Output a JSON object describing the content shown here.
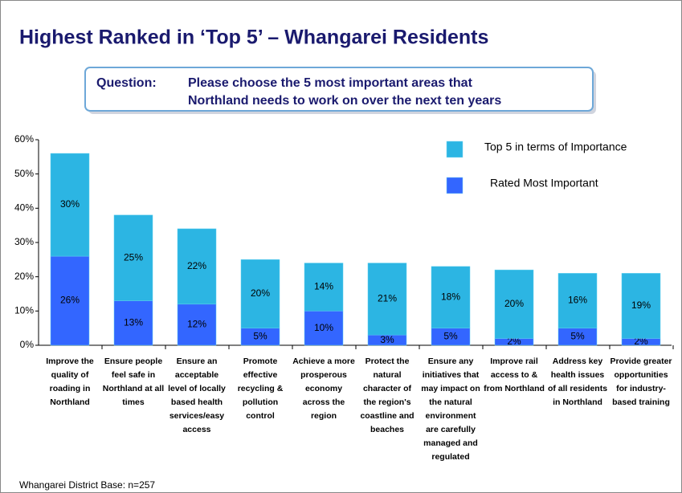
{
  "chart_data": {
    "type": "bar",
    "title": "Highest Ranked in ‘Top 5’ – Whangarei Residents",
    "question_label": "Question:",
    "question": "Please choose the 5 most important areas that Northland needs to work on over the next ten years",
    "footnote": "Whangarei District Base:  n=257",
    "stacked": true,
    "categories": [
      "Improve the quality of roading in Northland",
      "Ensure people feel safe in Northland at all times",
      "Ensure an acceptable level of locally based health services/easy access",
      "Promote effective recycling & pollution control",
      "Achieve a more prosperous economy across the region",
      "Protect the natural character of the region's coastline and beaches",
      "Ensure any initiatives that may impact on the natural environment are carefully managed and regulated",
      "Improve rail access to & from Northland",
      "Address key health issues of all residents in Northland",
      "Provide greater opportunities for industry-based training"
    ],
    "series": [
      {
        "name": "Rated Most Important",
        "color": "#3366ff",
        "values": [
          26,
          13,
          12,
          5,
          10,
          3,
          5,
          2,
          5,
          2
        ],
        "value_labels": [
          "26%",
          "13%",
          "12%",
          "5%",
          "10%",
          "3%",
          "5%",
          "2%",
          "5%",
          "2%"
        ]
      },
      {
        "name": "Top 5 in terms of Importance",
        "color": "#2cb5e3",
        "values": [
          30,
          25,
          22,
          20,
          14,
          21,
          18,
          20,
          16,
          19
        ],
        "value_labels": [
          "30%",
          "25%",
          "22%",
          "20%",
          "14%",
          "21%",
          "18%",
          "20%",
          "16%",
          "19%"
        ]
      }
    ],
    "ylim": [
      0,
      60
    ],
    "yticks": [
      {
        "value": 0,
        "label": "0%"
      },
      {
        "value": 10,
        "label": "10%"
      },
      {
        "value": 20,
        "label": "20%"
      },
      {
        "value": 30,
        "label": "30%"
      },
      {
        "value": 40,
        "label": "40%"
      },
      {
        "value": 50,
        "label": "50%"
      },
      {
        "value": 60,
        "label": "60%"
      }
    ]
  }
}
